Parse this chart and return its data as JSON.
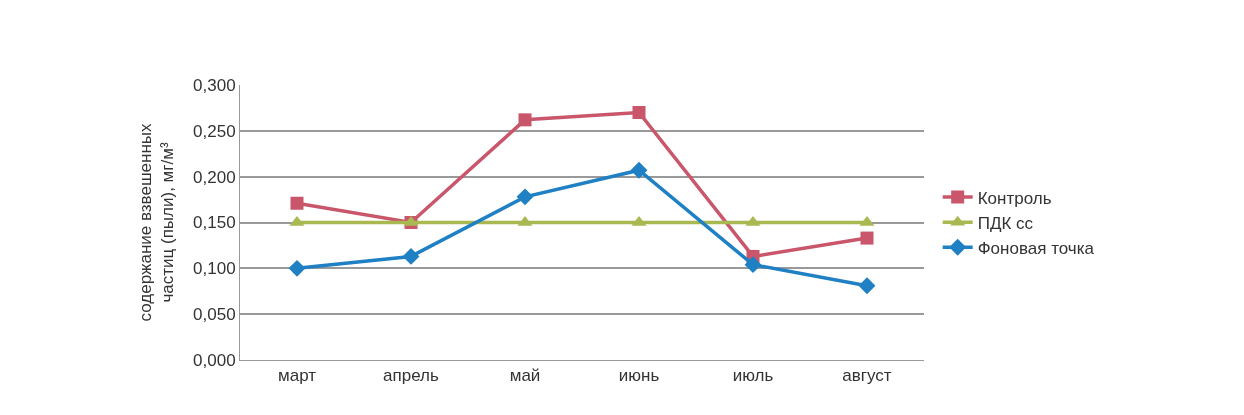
{
  "chart_data": {
    "type": "line",
    "ylabel": "содержание взвешенных\nчастиц (пыли), мг/м³",
    "categories": [
      "март",
      "апрель",
      "май",
      "июнь",
      "июль",
      "август"
    ],
    "series": [
      {
        "name": "Контроль",
        "color": "#c9566b",
        "marker": "square",
        "values": [
          0.171,
          0.15,
          0.262,
          0.27,
          0.113,
          0.133
        ]
      },
      {
        "name": "ПДК сс",
        "color": "#a9b850",
        "marker": "triangle",
        "values": [
          0.15,
          0.15,
          0.15,
          0.15,
          0.15,
          0.15
        ]
      },
      {
        "name": "Фоновая точка",
        "color": "#1f80c4",
        "marker": "diamond",
        "values": [
          0.1,
          0.113,
          0.178,
          0.207,
          0.104,
          0.081
        ]
      }
    ],
    "ylim": [
      0,
      0.3
    ],
    "yticks": [
      {
        "value": 0,
        "label": "0,000"
      },
      {
        "value": 0.05,
        "label": "0,050"
      },
      {
        "value": 0.1,
        "label": "0,100"
      },
      {
        "value": 0.15,
        "label": "0,150"
      },
      {
        "value": 0.2,
        "label": "0,200"
      },
      {
        "value": 0.25,
        "label": "0,250"
      },
      {
        "value": 0.3,
        "label": "0,300"
      }
    ],
    "grid": "y",
    "legend": "right",
    "line_style": "solid"
  }
}
